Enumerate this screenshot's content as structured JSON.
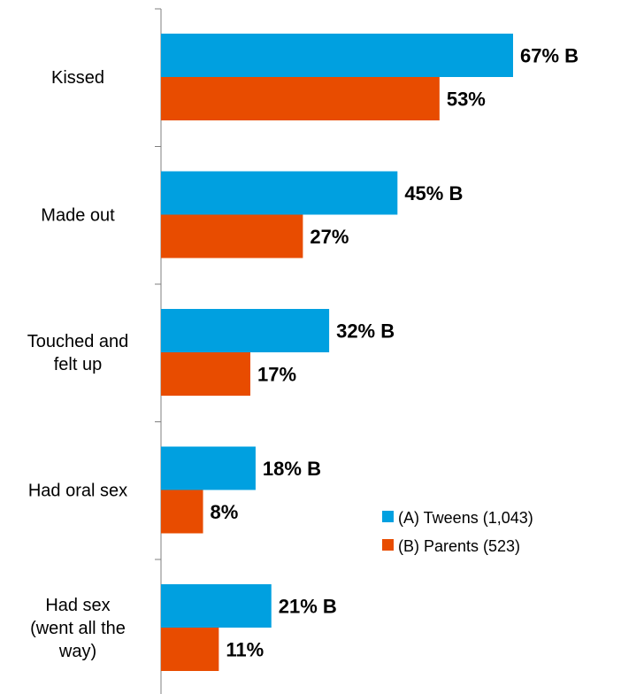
{
  "chart_data": {
    "type": "bar",
    "orientation": "horizontal",
    "categories": [
      [
        "Kissed"
      ],
      [
        "Made out"
      ],
      [
        "Touched and",
        "felt up"
      ],
      [
        "Had oral sex"
      ],
      [
        "Had sex",
        "(went all the",
        "way)"
      ]
    ],
    "series": [
      {
        "name": "(A) Tweens (1,043)",
        "color": "#00A0E0",
        "values": [
          67,
          45,
          32,
          18,
          21
        ],
        "labels": [
          "67% B",
          "45% B",
          "32% B",
          "18% B",
          "21% B"
        ]
      },
      {
        "name": "(B) Parents (523)",
        "color": "#E84C00",
        "values": [
          53,
          27,
          17,
          8,
          11
        ],
        "labels": [
          "53%",
          "27%",
          "17%",
          "8%",
          "11%"
        ]
      }
    ],
    "xlim": [
      0,
      100
    ],
    "grid": false,
    "legend_position": "right"
  }
}
